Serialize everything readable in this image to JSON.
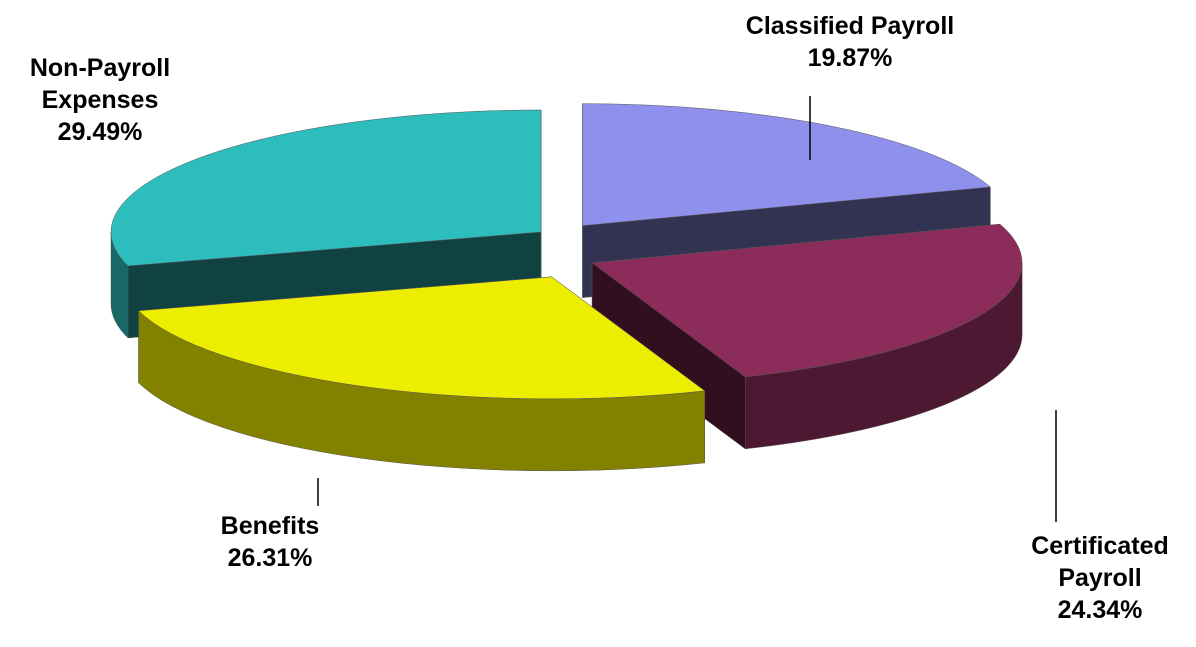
{
  "chart_data": {
    "type": "pie",
    "categories": [
      "Classified Payroll",
      "Certificated Payroll",
      "Benefits",
      "Non-Payroll Expenses"
    ],
    "values": [
      19.87,
      24.34,
      26.31,
      29.49
    ],
    "value_labels": [
      "19.87%",
      "24.34%",
      "26.31%",
      "29.49%"
    ],
    "colors": [
      "#8f8fec",
      "#8b2c5a",
      "#eded00",
      "#2ebdbd"
    ]
  }
}
